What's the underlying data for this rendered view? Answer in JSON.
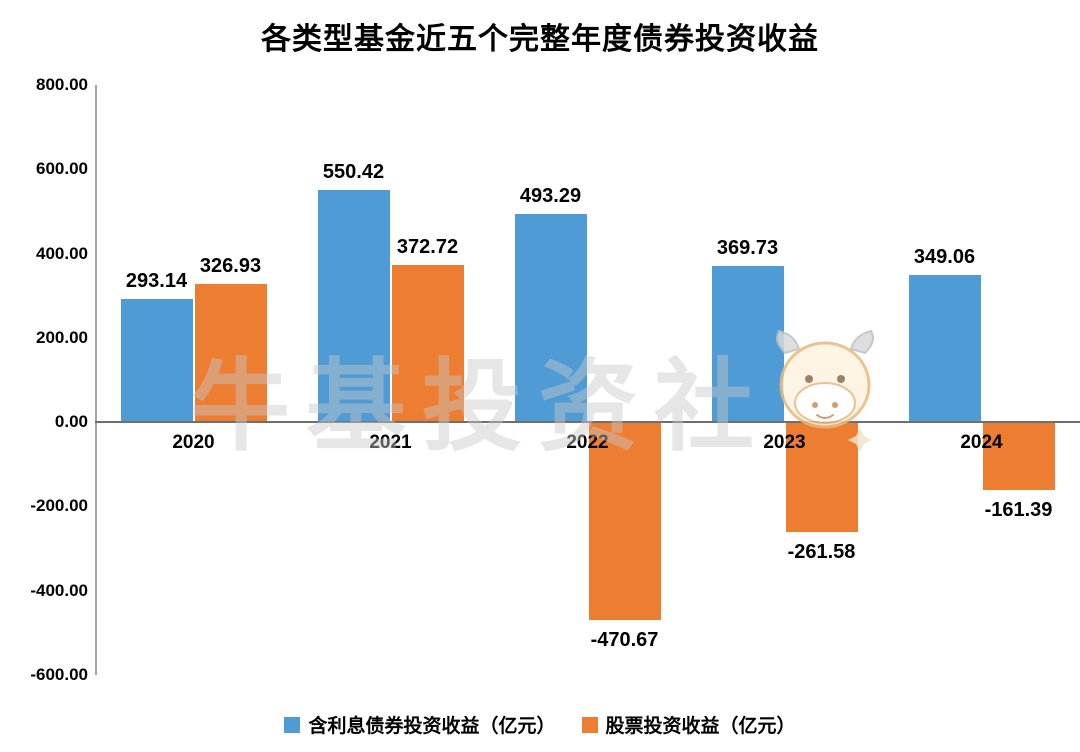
{
  "title": "各类型基金近五个完整年度债券投资收益",
  "watermark": {
    "text": "牛基投资社",
    "mascot": "ox-mascot"
  },
  "chart_data": {
    "type": "bar",
    "categories": [
      "2020",
      "2021",
      "2022",
      "2023",
      "2024"
    ],
    "series": [
      {
        "name": "含利息债券投资收益（亿元）",
        "color": "#4E9BD5",
        "values": [
          293.14,
          550.42,
          493.29,
          369.73,
          349.06
        ]
      },
      {
        "name": "股票投资收益（亿元）",
        "color": "#ED7D31",
        "values": [
          326.93,
          372.72,
          -470.67,
          -261.58,
          -161.39
        ]
      }
    ],
    "title": "各类型基金近五个完整年度债券投资收益",
    "xlabel": "",
    "ylabel": "",
    "ylim": [
      -600,
      800
    ],
    "ytick_step": 200,
    "ytick_labels": [
      "800.00",
      "600.00",
      "400.00",
      "200.00",
      "0.00",
      "-200.00",
      "-400.00",
      "-600.00"
    ],
    "grid": false,
    "legend_position": "bottom"
  }
}
